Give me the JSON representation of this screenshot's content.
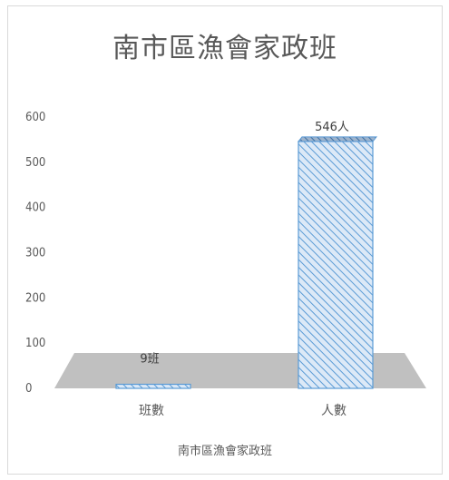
{
  "chart_data": {
    "type": "bar",
    "title": "南市區漁會家政班",
    "xlabel": "南市區漁會家政班",
    "ylabel": "",
    "categories": [
      "班數",
      "人數"
    ],
    "values": [
      9,
      546
    ],
    "data_labels": [
      "9班",
      "546人"
    ],
    "ylim": [
      0,
      600
    ],
    "yticks": [
      "0",
      "100",
      "200",
      "300",
      "400",
      "500",
      "600"
    ],
    "grid": false,
    "legend": "none",
    "style": "3d-column-hatched",
    "colors": {
      "bar": "#5b9bd5",
      "bar_light": "#dce9f7",
      "floor": "#bfbfbf",
      "text": "#595959"
    }
  }
}
